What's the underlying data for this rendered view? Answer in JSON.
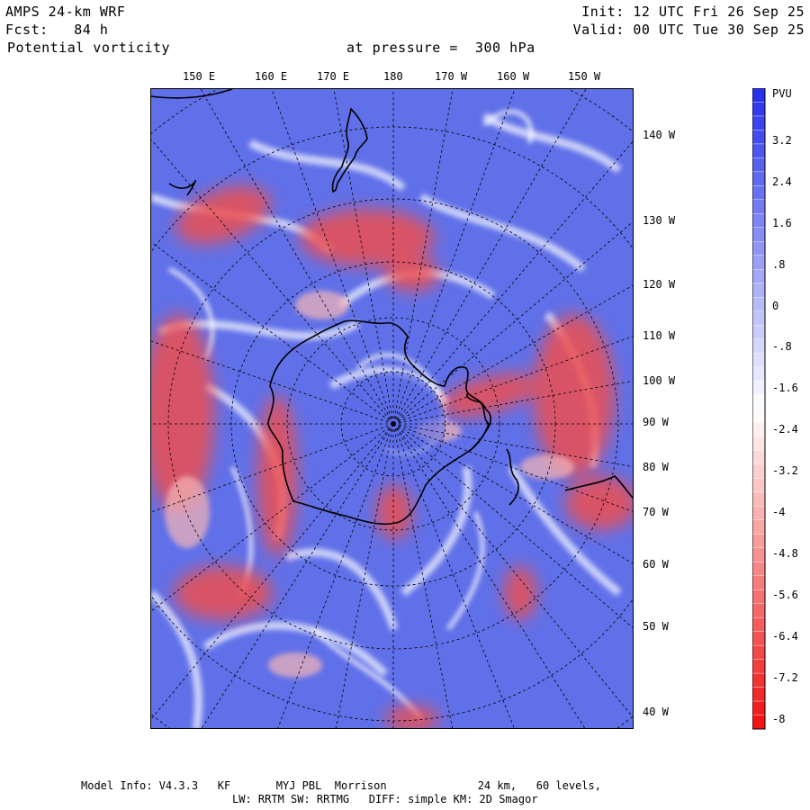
{
  "header": {
    "model": "AMPS 24-km WRF",
    "forecast": "Fcst:   84 h",
    "field": "Potential vorticity",
    "pressure": "at pressure =  300 hPa",
    "init": "Init: 12 UTC Fri 26 Sep 25",
    "valid": "Valid: 00 UTC Tue 30 Sep 25"
  },
  "map": {
    "top_longitudes": [
      "150 E",
      "160 E",
      "170 E",
      "180",
      "170 W",
      "160 W",
      "150 W"
    ],
    "right_longitudes": [
      "140 W",
      "130 W",
      "120 W",
      "110 W",
      "100 W",
      "90 W",
      "80 W",
      "70 W",
      "60 W",
      "50 W",
      "40 W"
    ],
    "colors": {
      "positive": "#4a5ee6",
      "negative": "#ee4444",
      "neutral": "#ffffff"
    }
  },
  "colorbar": {
    "unit": "PVU",
    "labels": [
      "3.2",
      "2.4",
      "1.6",
      ".8",
      "0",
      "-.8",
      "-1.6",
      "-2.4",
      "-3.2",
      "-4",
      "-4.8",
      "-5.6",
      "-6.4",
      "-7.2",
      "-8"
    ]
  },
  "footer": {
    "line1": "Model Info: V4.3.3   KF       MYJ PBL  Morrison              24 km,   60 levels,",
    "line2": "LW: RRTM SW: RRTMG   DIFF: simple KM: 2D Smagor"
  }
}
